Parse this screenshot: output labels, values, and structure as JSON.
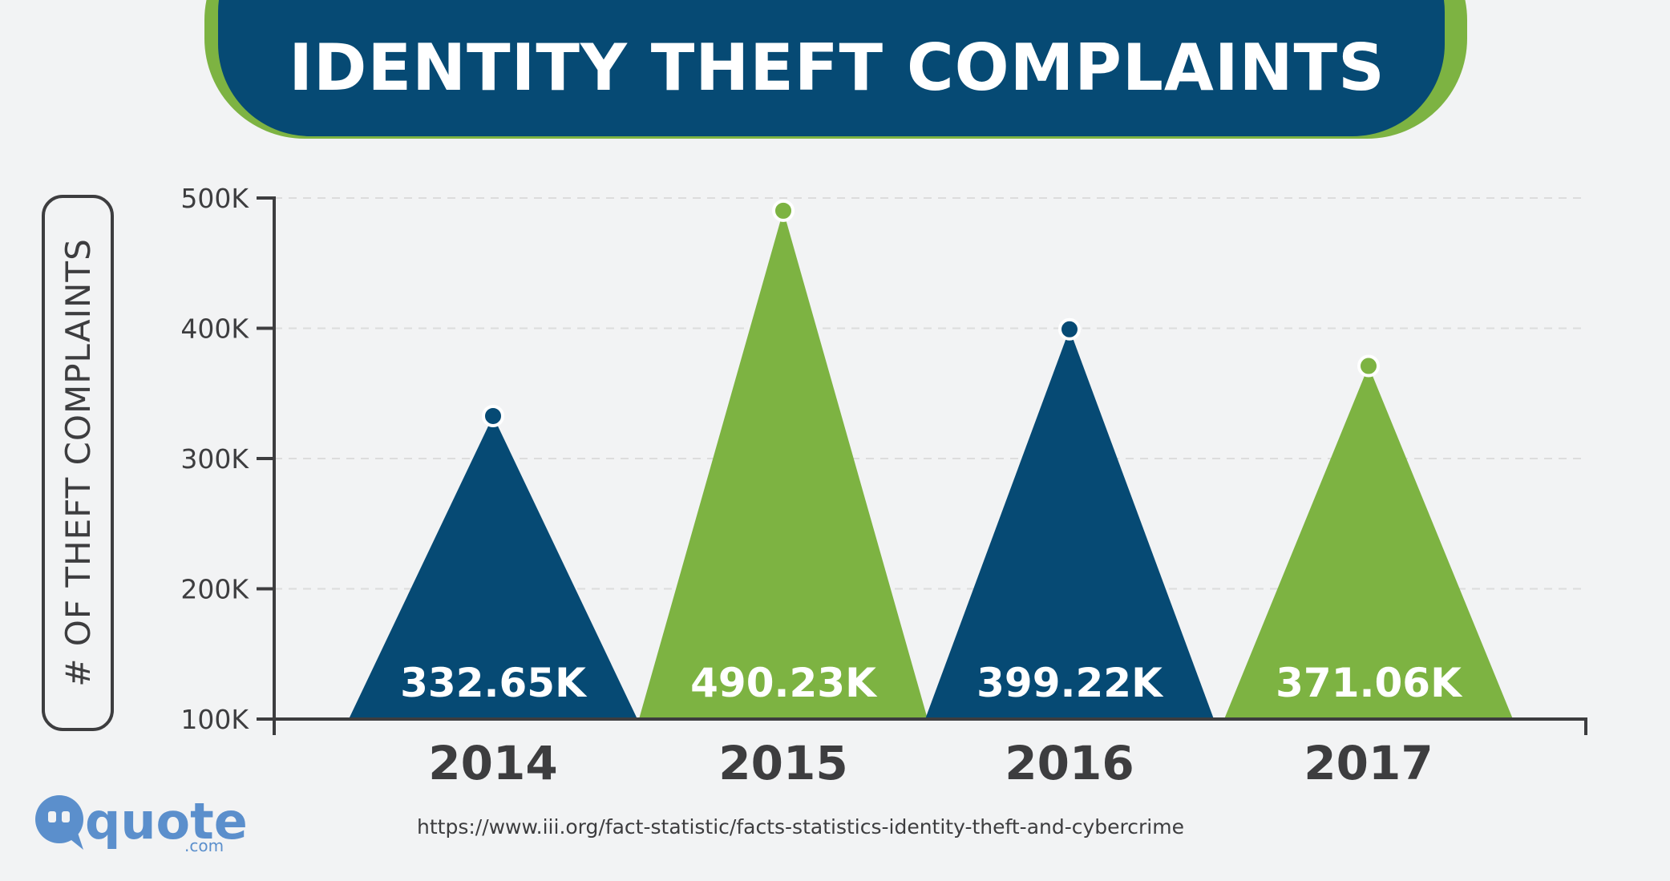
{
  "title": "IDENTITY THEFT COMPLAINTS",
  "source": "https://www.iii.org/fact-statistic/facts-statistics-identity-theft-and-cybercrime",
  "logo": {
    "name": "quote",
    "suffix": ".com"
  },
  "colors": {
    "navy": "#064a74",
    "green": "#7db342",
    "axis": "#3d3d3f",
    "grid": "#dcdcdc",
    "background": "#f2f3f4"
  },
  "chart_data": {
    "type": "bar",
    "title": "IDENTITY THEFT COMPLAINTS",
    "ylabel": "# OF THEFT COMPLAINTS",
    "xlabel": "",
    "categories": [
      "2014",
      "2015",
      "2016",
      "2017"
    ],
    "values": [
      332650,
      490230,
      399220,
      371060
    ],
    "value_labels": [
      "332.65K",
      "490.23K",
      "399.22K",
      "371.06K"
    ],
    "bar_colors": [
      "#064a74",
      "#7db342",
      "#064a74",
      "#7db342"
    ],
    "y_ticks": [
      100000,
      200000,
      300000,
      400000,
      500000
    ],
    "y_tick_labels": [
      "100K",
      "200K",
      "300K",
      "400K",
      "500K"
    ],
    "ylim": [
      100000,
      500000
    ],
    "grid": true,
    "legend": "none"
  }
}
